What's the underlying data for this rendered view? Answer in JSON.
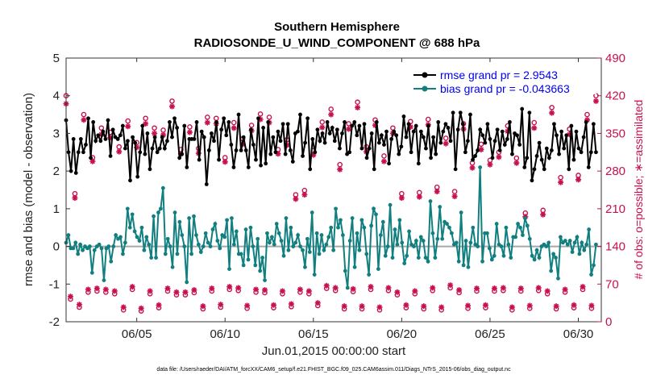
{
  "chart_data": {
    "type": "line",
    "title": "Southern Hemisphere",
    "subtitle": "RADIOSONDE_U_WIND_COMPONENT @ 688 hPa",
    "ylabel": "rmse and bias (model - observation)",
    "ylabel_right": "# of obs: o=possible; ∗=assimilated",
    "xlabel": "Jun.01,2015 00:00:00 start",
    "footer": "data file: /Users/raeder/DAI/ATM_forcXX/CAM6_setup/f.e21.FHIST_BGC.f09_025.CAM6assim.011/Diags_NTrS_2015-06/obs_diag_output.nc",
    "xlim": [
      1,
      31.3
    ],
    "ylim": [
      -2,
      5
    ],
    "ylim_right": [
      0,
      490
    ],
    "x_ticks": [
      5,
      10,
      15,
      20,
      25,
      30
    ],
    "x_tick_labels": [
      "06/05",
      "06/10",
      "06/15",
      "06/20",
      "06/25",
      "06/30"
    ],
    "y_ticks": [
      -2,
      -1,
      0,
      1,
      2,
      3,
      4,
      5
    ],
    "y_ticks_right": [
      0,
      70,
      140,
      210,
      280,
      350,
      420,
      490
    ],
    "legend_position": "top-right",
    "colors": {
      "rmse": "#000000",
      "bias": "#117f7f",
      "obs": "#c8104f",
      "zero_line": "#a8a8a8"
    },
    "series": [
      {
        "name": "rmse grand pr = 2.9543",
        "axis": "left",
        "values": [
          3.35,
          2.5,
          2.0,
          2.85,
          1.95,
          2.5,
          2.85,
          2.5,
          2.7,
          3.4,
          2.35,
          3.3,
          2.8,
          2.95,
          2.8,
          3.05,
          2.85,
          3.35,
          2.4,
          3.1,
          2.9,
          2.85,
          2.95,
          3.2,
          2.6,
          2.8,
          1.75,
          2.9,
          2.75,
          1.85,
          2.5,
          3.2,
          2.45,
          3.0,
          2.05,
          2.6,
          2.9,
          2.5,
          2.6,
          2.9,
          2.6,
          2.8,
          3.3,
          2.9,
          3.4,
          3.15,
          2.35,
          2.45,
          3.2,
          2.1,
          2.85,
          2.85,
          2.85,
          3.3,
          2.3,
          3.05,
          2.9,
          1.65,
          2.55,
          3.0,
          2.8,
          3.3,
          2.3,
          3.1,
          3.4,
          2.95,
          3.3,
          2.7,
          2.1,
          2.55,
          3.5,
          2.55,
          2.9,
          2.55,
          2.1,
          3.1,
          2.7,
          2.3,
          3.4,
          2.15,
          3.15,
          2.2,
          3.3,
          2.45,
          2.9,
          2.5,
          3.05,
          2.8,
          3.25,
          2.45,
          3.25,
          2.55,
          2.25,
          3.0,
          3.05,
          3.5,
          2.4,
          2.75,
          3.4,
          2.05,
          2.85,
          2.5,
          3.1,
          2.8,
          3.0,
          2.75,
          3.3,
          3.0,
          3.15,
          2.8,
          3.1,
          2.6,
          3.0,
          3.3,
          2.45,
          2.5,
          3.2,
          3.3,
          2.95,
          3.2,
          2.6,
          3.25,
          2.35,
          2.6,
          3.0,
          2.05,
          3.3,
          2.75,
          2.95,
          2.7,
          3.05,
          2.2,
          2.85,
          3.05,
          2.95,
          2.45,
          2.65,
          3.45,
          2.9,
          3.25,
          2.5,
          3.05,
          3.2,
          2.2,
          3.05,
          2.9,
          2.6,
          3.2,
          2.35,
          2.9,
          2.45,
          3.3,
          2.75,
          3.05,
          3.25,
          3.15,
          2.8,
          3.55,
          2.05,
          3.1,
          3.55,
          3.25,
          2.5,
          2.8,
          3.5,
          2.3,
          2.4,
          2.55,
          3.1,
          2.95,
          2.75,
          3.25,
          2.85,
          2.35,
          2.8,
          3.1,
          2.55,
          3.05,
          2.7,
          2.85,
          3.3,
          2.45,
          3.0,
          2.95,
          2.7,
          3.65,
          2.1,
          2.35,
          3.55,
          1.75,
          2.05,
          2.4,
          2.75,
          2.3,
          2.05,
          2.6,
          2.35,
          2.55,
          3.25,
          2.95,
          2.45,
          3.05,
          2.6,
          2.95,
          2.05,
          3.2,
          2.3,
          3.05,
          2.6,
          2.5,
          2.9,
          3.3,
          2.1,
          2.5,
          3.25,
          2.5
        ]
      },
      {
        "name": "bias grand pr = -0.043663",
        "axis": "left",
        "values": [
          0.1,
          0.3,
          -0.05,
          -0.05,
          0.1,
          -0.2,
          0.05,
          -0.1,
          0.0,
          -0.05,
          0.0,
          -0.7,
          -0.1,
          0.0,
          0.05,
          -0.05,
          -0.9,
          -0.05,
          0.0,
          -0.4,
          0.0,
          0.3,
          0.2,
          0.25,
          -0.2,
          0.1,
          1.0,
          0.5,
          0.85,
          0.4,
          0.25,
          0.15,
          0.5,
          -0.1,
          0.25,
          0.05,
          -0.3,
          0.8,
          -0.3,
          0.9,
          1.0,
          1.55,
          -0.2,
          0.2,
          0.0,
          -0.55,
          0.9,
          -0.2,
          0.65,
          0.3,
          0.0,
          -0.95,
          0.75,
          -0.2,
          0.8,
          0.3,
          0.05,
          -0.15,
          0.0,
          0.35,
          0.1,
          0.0,
          0.45,
          0.6,
          0.15,
          -0.05,
          0.3,
          0.25,
          0.7,
          -0.6,
          0.75,
          0.05,
          0.4,
          -0.2,
          -0.2,
          -0.5,
          0.45,
          -0.35,
          0.5,
          0.0,
          -0.5,
          0.2,
          -0.65,
          -0.3,
          -0.9,
          0.35,
          0.1,
          0.25,
          0.05,
          0.6,
          0.35,
          0.15,
          -0.25,
          0.75,
          -0.1,
          0.5,
          0.0,
          0.1,
          0.3,
          0.0,
          -0.1,
          -0.55,
          0.2,
          -0.15,
          0.9,
          -0.75,
          0.35,
          -0.2,
          0.3,
          -0.1,
          0.05,
          0.25,
          0.5,
          -0.1,
          1.0,
          0.5,
          0.7,
          0.3,
          -0.65,
          -1.1,
          0.15,
          0.75,
          -0.55,
          0.35,
          -0.1,
          0.7,
          0.5,
          -0.2,
          -0.75,
          0.55,
          1.0,
          0.85,
          -0.6,
          0.3,
          0.65,
          -0.25,
          0.0,
          1.1,
          -0.3,
          0.45,
          0.05,
          0.7,
          0.1,
          -0.45,
          -0.25,
          0.4,
          0.05,
          0.0,
          0.15,
          -0.3,
          0.25,
          0.15,
          -0.3,
          -0.4,
          1.2,
          0.35,
          -0.3,
          0.2,
          1.05,
          0.2,
          0.65,
          0.6,
          0.5,
          0.35,
          0.05,
          0.1,
          -0.4,
          0.9,
          -0.5,
          0.15,
          -0.55,
          0.1,
          0.5,
          0.05,
          0.0,
          2.1,
          -0.4,
          0.35,
          0.35,
          -0.05,
          -0.35,
          -0.25,
          0.6,
          0.05,
          0.0,
          -0.25,
          0.5,
          0.05,
          -0.3,
          0.25,
          0.25,
          0.6,
          0.5,
          0.3,
          0.75,
          0.55,
          0.2,
          -0.25,
          -0.35,
          -0.1,
          -0.3,
          0.0,
          0.05,
          0.0,
          0.1,
          -0.65,
          -0.2,
          -0.3,
          -0.85,
          0.25,
          0.1,
          0.15,
          0.05,
          0.15,
          -0.15,
          0.1,
          0.25,
          -0.2,
          0.1,
          -0.1,
          0.05,
          0.45,
          -0.75,
          -0.5,
          0.05
        ]
      },
      {
        "name": "possible",
        "axis": "right",
        "x": [
          1,
          1.5,
          2,
          2.5,
          3,
          3.5,
          4,
          4.5,
          5,
          5.5,
          6,
          6.5,
          7,
          7.5,
          8,
          8.5,
          9,
          9.5,
          10,
          10.5,
          11,
          11.5,
          12,
          12.5,
          13,
          13.5,
          14,
          14.5,
          15,
          15.5,
          16,
          16.5,
          17,
          17.5,
          18,
          18.5,
          19,
          19.5,
          20,
          20.5,
          21,
          21.5,
          22,
          22.5,
          23,
          23.5,
          24,
          24.5,
          25,
          25.5,
          26,
          26.5,
          27,
          27.5,
          28,
          28.5,
          29,
          29.5,
          30,
          30.5,
          31,
          1.25,
          1.75,
          2.25,
          2.75,
          3.25,
          3.75,
          4.25,
          4.75,
          5.25,
          5.75,
          6.25,
          6.75,
          7.25,
          7.75,
          8.25,
          8.75,
          9.25,
          9.75,
          10.25,
          10.75,
          11.25,
          11.75,
          12.25,
          12.75,
          13.25,
          13.75,
          14.25,
          14.75,
          15.25,
          15.75,
          16.25,
          16.75,
          17.25,
          17.75,
          18.25,
          18.75,
          19.25,
          19.75,
          20.25,
          20.75,
          21.25,
          21.75,
          22.25,
          22.75,
          23.25,
          23.75,
          24.25,
          24.75,
          25.25,
          25.75,
          26.25,
          26.75,
          27.25,
          27.75,
          28.25,
          28.75,
          29.25,
          29.75,
          30.25,
          30.75
        ],
        "values": [
          420,
          238,
          385,
          305,
          360,
          352,
          325,
          373,
          333,
          378,
          360,
          356,
          410,
          320,
          362,
          322,
          380,
          378,
          305,
          370,
          340,
          365,
          386,
          380,
          320,
          338,
          236,
          244,
          318,
          371,
          395,
          292,
          368,
          408,
          325,
          375,
          308,
          360,
          238,
          372,
          240,
          376,
          250,
          341,
          242,
          368,
          295,
          330,
          300,
          315,
          364,
          304,
          202,
          370,
          207,
          398,
          268,
          358,
          272,
          385,
          420,
          42,
          27,
          55,
          57,
          55,
          52,
          22,
          60,
          20,
          52,
          26,
          57,
          50,
          50,
          54,
          24,
          57,
          27,
          60,
          58,
          25,
          55,
          54,
          26,
          52,
          28,
          55,
          52,
          30,
          62,
          58,
          24,
          56,
          24,
          60,
          22,
          58,
          50,
          26,
          52,
          24,
          58,
          22,
          63,
          54,
          25,
          57,
          26,
          57,
          58,
          22,
          57,
          25,
          58,
          52,
          24,
          55,
          26,
          60,
          25
        ]
      },
      {
        "name": "assimilated",
        "axis": "right",
        "x": [
          1,
          1.5,
          2,
          2.5,
          3,
          3.5,
          4,
          4.5,
          5,
          5.5,
          6,
          6.5,
          7,
          7.5,
          8,
          8.5,
          9,
          9.5,
          10,
          10.5,
          11,
          11.5,
          12,
          12.5,
          13,
          13.5,
          14,
          14.5,
          15,
          15.5,
          16,
          16.5,
          17,
          17.5,
          18,
          18.5,
          19,
          19.5,
          20,
          20.5,
          21,
          21.5,
          22,
          22.5,
          23,
          23.5,
          24,
          24.5,
          25,
          25.5,
          26,
          26.5,
          27,
          27.5,
          28,
          28.5,
          29,
          29.5,
          30,
          30.5,
          31,
          1.25,
          1.75,
          2.25,
          2.75,
          3.25,
          3.75,
          4.25,
          4.75,
          5.25,
          5.75,
          6.25,
          6.75,
          7.25,
          7.75,
          8.25,
          8.75,
          9.25,
          9.75,
          10.25,
          10.75,
          11.25,
          11.75,
          12.25,
          12.75,
          13.25,
          13.75,
          14.25,
          14.75,
          15.25,
          15.75,
          16.25,
          16.75,
          17.25,
          17.75,
          18.25,
          18.75,
          19.25,
          19.75,
          20.25,
          20.75,
          21.25,
          21.75,
          22.25,
          22.75,
          23.25,
          23.75,
          24.25,
          24.75,
          25.25,
          25.75,
          26.25,
          26.75,
          27.25,
          27.75,
          28.25,
          28.75,
          29.25,
          29.75,
          30.25,
          30.75
        ],
        "values": [
          405,
          230,
          375,
          298,
          348,
          342,
          316,
          363,
          324,
          368,
          350,
          347,
          400,
          312,
          352,
          313,
          370,
          368,
          297,
          360,
          330,
          355,
          376,
          370,
          312,
          328,
          228,
          236,
          310,
          361,
          385,
          283,
          358,
          398,
          316,
          365,
          298,
          350,
          230,
          362,
          232,
          366,
          242,
          331,
          233,
          358,
          286,
          320,
          292,
          306,
          354,
          295,
          195,
          360,
          199,
          388,
          259,
          348,
          264,
          375,
          410,
          47,
          32,
          60,
          62,
          60,
          57,
          27,
          65,
          25,
          57,
          31,
          62,
          55,
          55,
          59,
          29,
          62,
          32,
          65,
          63,
          30,
          60,
          59,
          31,
          57,
          33,
          60,
          57,
          35,
          67,
          63,
          29,
          61,
          29,
          65,
          27,
          63,
          55,
          31,
          57,
          29,
          63,
          27,
          68,
          59,
          30,
          62,
          31,
          62,
          63,
          27,
          62,
          30,
          63,
          57,
          29,
          60,
          31,
          65,
          30
        ]
      }
    ]
  }
}
